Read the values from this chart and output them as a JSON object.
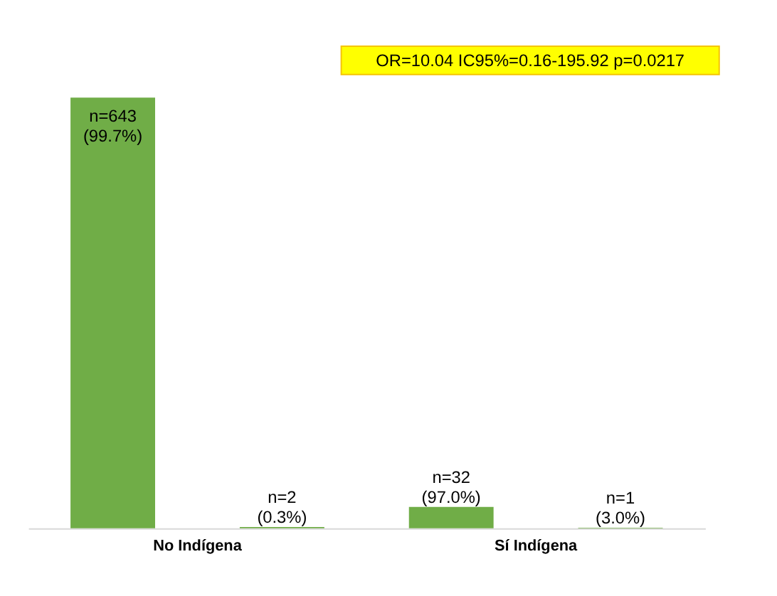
{
  "chart_data": {
    "type": "bar",
    "categories": [
      "No Indígena",
      "Sí Indígena"
    ],
    "series": [
      {
        "color": "#70ad47",
        "values": [
          643,
          32
        ],
        "value_labels": [
          "n=643\n(99.7%)",
          "n=32\n(97.0%)"
        ]
      },
      {
        "color": "#70ad47",
        "values": [
          2,
          1
        ],
        "value_labels": [
          "n=2\n(0.3%)",
          "n=1\n(3.0%)"
        ]
      }
    ],
    "annotations": [
      "OR=10.04 IC95%=0.16-195.92 p=0.0217"
    ],
    "grid": false,
    "legend": false
  }
}
